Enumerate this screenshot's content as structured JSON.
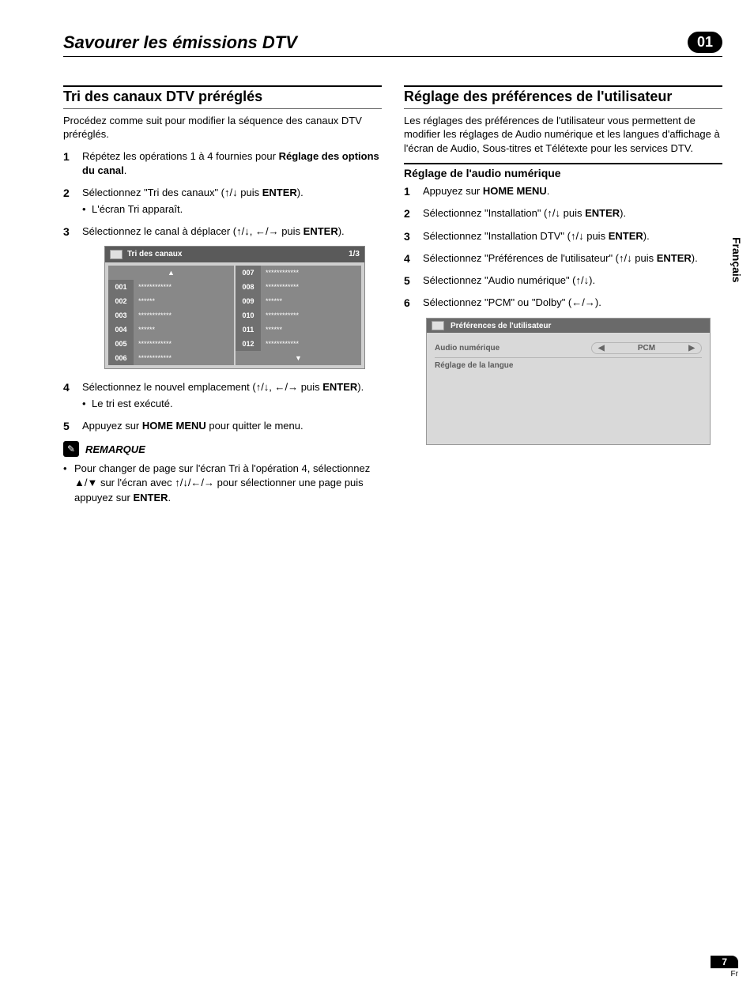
{
  "colors": {
    "body_bg": "#ffffff",
    "text": "#000000",
    "panel_bg": "#cfcfcf",
    "panel_header_bg": "#5a5a5a",
    "row_bg": "#888888",
    "row_num_bg": "#707070",
    "prefs_bg": "#d9d9d9",
    "prefs_header_bg": "#6a6a6a",
    "prefs_text": "#5a5a5a",
    "rule": "#000000",
    "grid_line": "#b5b5b5"
  },
  "fonts": {
    "body_pt": 13,
    "header_title_pt": 22,
    "section_title_pt": 18,
    "subsection_title_pt": 14,
    "panel_pt": 10
  },
  "header": {
    "title": "Savourer les émissions DTV",
    "chapter": "01"
  },
  "side_tab": "Français",
  "footer": {
    "page": "7",
    "lang": "Fr"
  },
  "left": {
    "section_title": "Tri des canaux DTV préréglés",
    "intro": "Procédez comme suit pour modifier la séquence des canaux DTV préréglés.",
    "steps": [
      {
        "text_a": "Répétez les opérations 1 à 4 fournies pour ",
        "bold": "Réglage des options du canal",
        "text_b": "."
      },
      {
        "text_a": "Sélectionnez \"Tri des canaux\" (",
        "arrows": "↑/↓",
        "mid": " puis ",
        "bold": "ENTER",
        "text_b": ").",
        "bullet": "L'écran Tri apparaît."
      },
      {
        "text_a": "Sélectionnez le canal à déplacer (",
        "arrows": "↑/↓, ←/→",
        "mid": " puis ",
        "bold": "ENTER",
        "text_b": ")."
      },
      {
        "text_a": "Sélectionnez le nouvel emplacement (",
        "arrows": "↑/↓, ←/→",
        "mid": " puis ",
        "bold": "ENTER",
        "text_b": ").",
        "bullet": "Le tri est exécuté."
      },
      {
        "text_a": "Appuyez sur ",
        "bold": "HOME MENU",
        "text_b": " pour quitter le menu."
      }
    ],
    "sort_table": {
      "title": "Tri des canaux",
      "page_indicator": "1/3",
      "left_rows": [
        {
          "num": "001",
          "val": "************"
        },
        {
          "num": "002",
          "val": "******"
        },
        {
          "num": "003",
          "val": "************"
        },
        {
          "num": "004",
          "val": "******"
        },
        {
          "num": "005",
          "val": "************"
        },
        {
          "num": "006",
          "val": "************"
        }
      ],
      "right_rows": [
        {
          "num": "007",
          "val": "************"
        },
        {
          "num": "008",
          "val": "************"
        },
        {
          "num": "009",
          "val": "******"
        },
        {
          "num": "010",
          "val": "************"
        },
        {
          "num": "011",
          "val": "******"
        },
        {
          "num": "012",
          "val": "************"
        }
      ],
      "up_arrow": "▲",
      "down_arrow": "▼"
    },
    "remark": {
      "label": "REMARQUE",
      "text_a": "Pour changer de page sur l'écran Tri à l'opération 4, sélectionnez ▲/▼ sur l'écran avec ",
      "arrows": "↑/↓/←/→",
      "text_b": " pour sélectionner une page puis appuyez sur ",
      "bold": "ENTER",
      "text_c": "."
    }
  },
  "right": {
    "section_title": "Réglage des préférences de l'utilisateur",
    "intro": "Les réglages des préférences de l'utilisateur vous permettent de modifier les réglages de Audio numérique et les langues d'affichage à l'écran de Audio, Sous-titres et Télétexte pour les services DTV.",
    "subsection_title": "Réglage de l'audio numérique",
    "steps": [
      {
        "text_a": "Appuyez sur ",
        "bold": "HOME MENU",
        "text_b": "."
      },
      {
        "text_a": "Sélectionnez \"Installation\" (",
        "arrows": "↑/↓",
        "mid": " puis ",
        "bold": "ENTER",
        "text_b": ")."
      },
      {
        "text_a": "Sélectionnez \"Installation DTV\" (",
        "arrows": "↑/↓",
        "mid": " puis ",
        "bold": "ENTER",
        "text_b": ")."
      },
      {
        "text_a": "Sélectionnez \"Préférences de l'utilisateur\" (",
        "arrows": "↑/↓",
        "mid": " puis ",
        "bold": "ENTER",
        "text_b": ")."
      },
      {
        "text_a": "Sélectionnez \"Audio numérique\" (",
        "arrows": "↑/↓",
        "text_b": ")."
      },
      {
        "text_a": "Sélectionnez \"PCM\" ou \"Dolby\" (",
        "arrows": "←/→",
        "text_b": ")."
      }
    ],
    "prefs_panel": {
      "title": "Préférences de l'utilisateur",
      "rows": [
        {
          "label": "Audio numérique",
          "value": "PCM",
          "has_selector": true
        },
        {
          "label": "Réglage de la langue",
          "value": "",
          "has_selector": false
        }
      ],
      "left_arrow": "◀",
      "right_arrow": "▶"
    }
  }
}
